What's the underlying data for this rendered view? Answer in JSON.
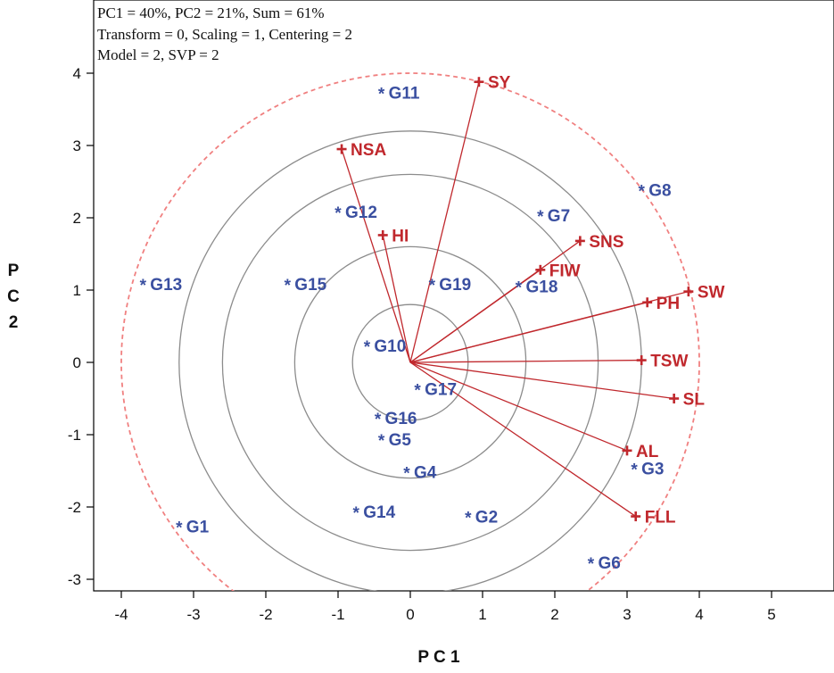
{
  "info_lines": [
    "PC1 = 40%, PC2 = 21%, Sum = 61%",
    "Transform = 0, Scaling = 1, Centering = 2",
    "Model = 2, SVP = 2"
  ],
  "colors": {
    "genotype": "#3a4fa0",
    "trait": "#c0282d",
    "circle": "#8c8c8c",
    "outer_circle": "#f08080",
    "frame": "#000000"
  },
  "chart_data": {
    "type": "scatter",
    "subtype": "GGE biplot (vector view)",
    "xlabel": "P C 1",
    "ylabel": "P C 2",
    "xlim": [
      -4.4,
      6.0
    ],
    "ylim": [
      -3.25,
      4.25
    ],
    "xticks": [
      -4,
      -3,
      -2,
      -1,
      0,
      1,
      2,
      3,
      4,
      5
    ],
    "yticks": [
      -3,
      -2,
      -1,
      0,
      1,
      2,
      3,
      4
    ],
    "grid": false,
    "concentric_circles_radius": [
      0.8,
      1.6,
      2.6,
      3.2
    ],
    "outer_dashed_circle_radius": 4.0,
    "genotypes": [
      {
        "name": "G1",
        "x": -3.2,
        "y": -2.25
      },
      {
        "name": "G2",
        "x": 0.8,
        "y": -2.12
      },
      {
        "name": "G3",
        "x": 3.1,
        "y": -1.45
      },
      {
        "name": "G4",
        "x": -0.05,
        "y": -1.5
      },
      {
        "name": "G5",
        "x": -0.4,
        "y": -1.05
      },
      {
        "name": "G6",
        "x": 2.5,
        "y": -2.75
      },
      {
        "name": "G7",
        "x": 1.8,
        "y": 2.05
      },
      {
        "name": "G8",
        "x": 3.2,
        "y": 2.4
      },
      {
        "name": "G10",
        "x": -0.6,
        "y": 0.25
      },
      {
        "name": "G11",
        "x": -0.4,
        "y": 3.75
      },
      {
        "name": "G12",
        "x": -1.0,
        "y": 2.1
      },
      {
        "name": "G13",
        "x": -3.7,
        "y": 1.1
      },
      {
        "name": "G14",
        "x": -0.75,
        "y": -2.05
      },
      {
        "name": "G15",
        "x": -1.7,
        "y": 1.1
      },
      {
        "name": "G16",
        "x": -0.45,
        "y": -0.75
      },
      {
        "name": "G17",
        "x": 0.1,
        "y": -0.35
      },
      {
        "name": "G18",
        "x": 1.5,
        "y": 1.07
      },
      {
        "name": "G19",
        "x": 0.3,
        "y": 1.1
      }
    ],
    "traits": [
      {
        "name": "SY",
        "x": 0.95,
        "y": 3.88
      },
      {
        "name": "NSA",
        "x": -0.95,
        "y": 2.95
      },
      {
        "name": "HI",
        "x": -0.38,
        "y": 1.76
      },
      {
        "name": "SNS",
        "x": 2.35,
        "y": 1.68
      },
      {
        "name": "FIW",
        "x": 1.8,
        "y": 1.28
      },
      {
        "name": "SW",
        "x": 3.85,
        "y": 0.98
      },
      {
        "name": "PH",
        "x": 3.28,
        "y": 0.83
      },
      {
        "name": "TSW",
        "x": 3.2,
        "y": 0.03
      },
      {
        "name": "SL",
        "x": 3.65,
        "y": -0.5
      },
      {
        "name": "AL",
        "x": 3.0,
        "y": -1.22
      },
      {
        "name": "FLL",
        "x": 3.12,
        "y": -2.13
      }
    ]
  }
}
